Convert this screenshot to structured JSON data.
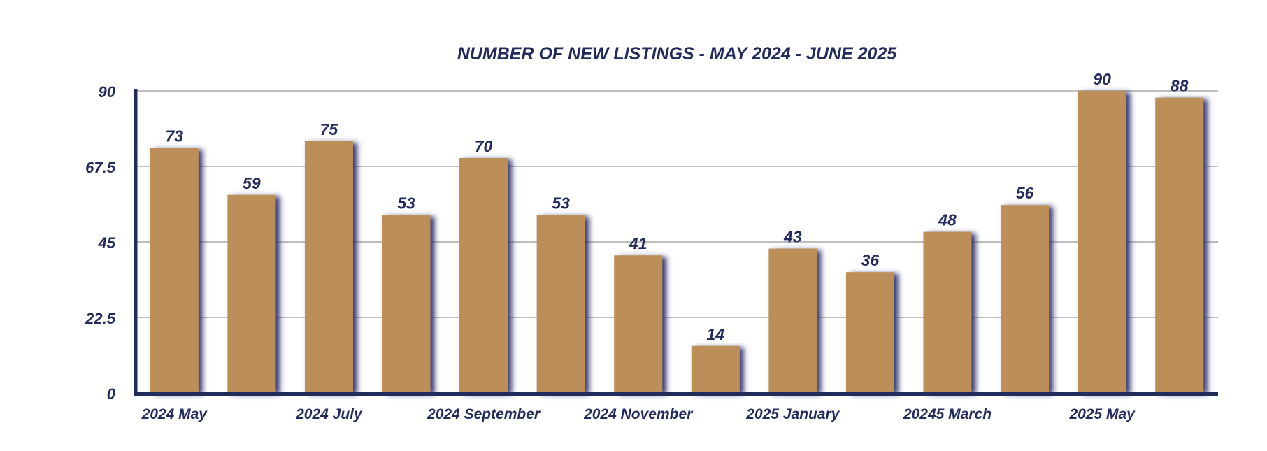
{
  "colors": {
    "bar": "#bc8f58",
    "bar_shadow": "#2a2f6a",
    "text": "#232a5c",
    "axis": "#232a5c",
    "grid": "#a9a9a9",
    "background": "#ffffff"
  },
  "chart_data": {
    "type": "bar",
    "title": "NUMBER OF NEW LISTINGS - MAY 2024 - JUNE 2025",
    "xlabel": "",
    "ylabel": "",
    "ylim": [
      0,
      90
    ],
    "yticks": [
      "0",
      "22.5",
      "45",
      "67.5",
      "90"
    ],
    "grid": true,
    "categories": [
      "2024 May",
      "",
      "2024 July",
      "",
      "2024 September",
      "",
      "2024 November",
      "",
      "2025 January",
      "",
      "20245 March",
      "",
      "2025 May",
      ""
    ],
    "values": [
      73,
      59,
      75,
      53,
      70,
      53,
      41,
      14,
      43,
      36,
      48,
      56,
      90,
      88
    ],
    "data_labels": [
      "73",
      "59",
      "75",
      "53",
      "70",
      "53",
      "41",
      "14",
      "43",
      "36",
      "48",
      "56",
      "90",
      "88"
    ]
  }
}
